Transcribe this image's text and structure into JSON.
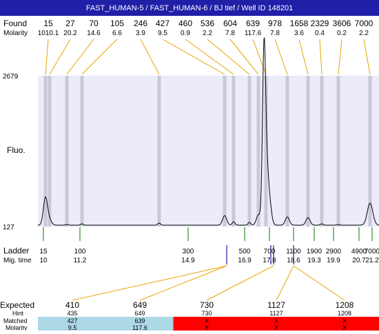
{
  "title": "FAST_HUMAN-5 / FAST_HUMAN-6 / BJ tief / Well ID 148201",
  "row_labels": {
    "found": "Found",
    "molarity": "Molarity",
    "fluo": "Fluo.",
    "ladder": "Ladder",
    "mig_time": "Mig. time",
    "expected": "Expected",
    "hint": "Hint",
    "matched": "Matched",
    "molarity_bottom": "Molarity"
  },
  "colors": {
    "title_bar": "#1f1fa8",
    "plot_bg": "#ebebfa",
    "found_line": "#e8a200",
    "peak_band": "#c9c9d6",
    "ladder_tick": "#007700",
    "ladder_marker": "#1f1fa8",
    "matched_ok": "#add8e6",
    "matched_fail": "#ff0000",
    "trace": "#000000"
  },
  "chart_data": {
    "type": "line",
    "title": "FAST_HUMAN-5 / FAST_HUMAN-6 / BJ tief / Well ID 148201",
    "ylabel": "Fluo.",
    "ylim": [
      127,
      2679
    ],
    "y_ticks": [
      "2679",
      "127"
    ],
    "found": [
      {
        "size": "15",
        "molarity": "1010.1"
      },
      {
        "size": "27",
        "molarity": "20.2"
      },
      {
        "size": "70",
        "molarity": "14.6"
      },
      {
        "size": "105",
        "molarity": "6.6"
      },
      {
        "size": "246",
        "molarity": "3.9"
      },
      {
        "size": "427",
        "molarity": "9.5"
      },
      {
        "size": "460",
        "molarity": "0.9"
      },
      {
        "size": "536",
        "molarity": "2.2"
      },
      {
        "size": "604",
        "molarity": "7.8"
      },
      {
        "size": "639",
        "molarity": "117.6"
      },
      {
        "size": "978",
        "molarity": "7.8"
      },
      {
        "size": "1658",
        "molarity": "3.6"
      },
      {
        "size": "2329",
        "molarity": "0.4"
      },
      {
        "size": "3606",
        "molarity": "0.2"
      },
      {
        "size": "7000",
        "molarity": "2.2"
      }
    ],
    "ladder": [
      {
        "size": "15",
        "mig_time": "10"
      },
      {
        "size": "100",
        "mig_time": "11.2"
      },
      {
        "size": "300",
        "mig_time": "14.9"
      },
      {
        "size": "500",
        "mig_time": "16.9"
      },
      {
        "size": "700",
        "mig_time": "17.8"
      },
      {
        "size": "1100",
        "mig_time": "18.6"
      },
      {
        "size": "1900",
        "mig_time": "19.3"
      },
      {
        "size": "2900",
        "mig_time": "19.9"
      },
      {
        "size": "4900",
        "mig_time": "20.7"
      },
      {
        "size": "7000",
        "mig_time": "21.2"
      }
    ],
    "expected": [
      {
        "expected": "410",
        "hint": "435",
        "matched": "427",
        "molarity": "9.5",
        "status": "ok"
      },
      {
        "expected": "649",
        "hint": "649",
        "matched": "639",
        "molarity": "117.6",
        "status": "ok"
      },
      {
        "expected": "730",
        "hint": "730",
        "matched": "X",
        "molarity": "X",
        "status": "fail"
      },
      {
        "expected": "1127",
        "hint": "1127",
        "matched": "X",
        "molarity": "X",
        "status": "fail"
      },
      {
        "expected": "1208",
        "hint": "1208",
        "matched": "X",
        "molarity": "X",
        "status": "fail"
      }
    ]
  }
}
